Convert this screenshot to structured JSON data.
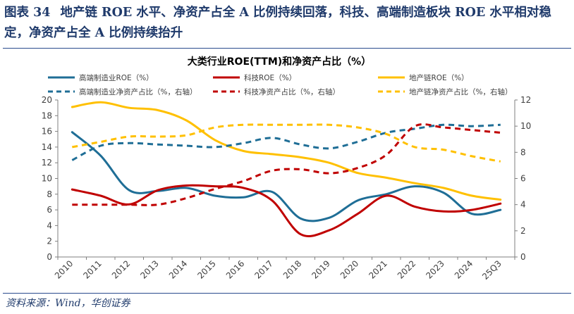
{
  "figure": {
    "label": "图表 34",
    "title": "地产链 ROE 水平、净资产占全 A 比例持续回落，科技、高端制造板块 ROE 水平相对稳定，净资产占全 A 比例持续抬升",
    "source": "资料来源：Wind，华创证券"
  },
  "chart_data": {
    "type": "line",
    "title": "大类行业ROE(TTM)和净资产占比（%）",
    "categories": [
      "2010",
      "2011",
      "2012",
      "2013",
      "2014",
      "2015",
      "2016",
      "2017",
      "2018",
      "2019",
      "2020",
      "2021",
      "2022",
      "2023",
      "2024",
      "25Q3"
    ],
    "y_left": {
      "min": 0,
      "max": 20,
      "step": 2
    },
    "y_right": {
      "min": 0,
      "max": 12,
      "step": 2
    },
    "grid": false,
    "legend_position": "top",
    "series": [
      {
        "name": "高端制造业ROE（%）",
        "axis": "left",
        "color": "#1f6e96",
        "dash": false,
        "smooth": true,
        "values": [
          15.9,
          12.9,
          8.5,
          8.4,
          8.8,
          7.8,
          7.6,
          8.3,
          4.9,
          5.0,
          7.2,
          8.0,
          9.0,
          8.2,
          5.5,
          6.0
        ]
      },
      {
        "name": "科技ROE（%）",
        "axis": "left",
        "color": "#c00000",
        "dash": false,
        "smooth": true,
        "values": [
          8.6,
          7.8,
          6.7,
          8.5,
          9.1,
          9.0,
          8.8,
          7.2,
          2.9,
          3.4,
          5.5,
          7.8,
          6.4,
          5.8,
          6.0,
          6.8
        ]
      },
      {
        "name": "地产链ROE（%）",
        "axis": "left",
        "color": "#ffc000",
        "dash": false,
        "smooth": true,
        "values": [
          19.1,
          19.7,
          19.0,
          18.7,
          17.4,
          14.9,
          13.5,
          13.1,
          12.7,
          12.0,
          10.7,
          10.1,
          9.4,
          8.8,
          7.8,
          7.3
        ]
      },
      {
        "name": "高端制造业净资产占比（%，右轴）",
        "axis": "right",
        "color": "#1f6e96",
        "dash": true,
        "smooth": true,
        "values": [
          7.4,
          8.5,
          8.7,
          8.6,
          8.5,
          8.4,
          8.7,
          9.1,
          8.6,
          8.3,
          8.8,
          9.5,
          9.8,
          10.1,
          10.0,
          10.1
        ]
      },
      {
        "name": "科技净资产占比（%，右轴）",
        "axis": "right",
        "color": "#c00000",
        "dash": true,
        "smooth": true,
        "values": [
          4.0,
          4.0,
          4.0,
          4.0,
          4.5,
          5.2,
          5.8,
          6.6,
          6.7,
          6.4,
          6.8,
          7.8,
          10.0,
          9.9,
          9.7,
          9.5
        ]
      },
      {
        "name": "地产链净资产占比（%，右轴）",
        "axis": "right",
        "color": "#ffc000",
        "dash": true,
        "smooth": true,
        "values": [
          8.4,
          8.8,
          9.2,
          9.2,
          9.3,
          9.9,
          10.1,
          10.1,
          10.1,
          10.1,
          9.9,
          9.4,
          8.4,
          8.2,
          7.7,
          7.3
        ]
      }
    ]
  }
}
